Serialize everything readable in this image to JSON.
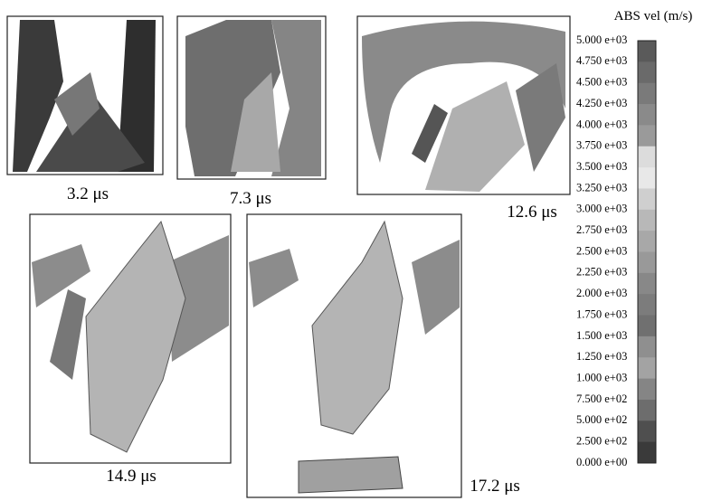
{
  "panels": [
    {
      "caption": "3.2 μs"
    },
    {
      "caption": "7.3 μs"
    },
    {
      "caption": "12.6 μs"
    },
    {
      "caption": "14.9 μs"
    },
    {
      "caption": "17.2 μs"
    }
  ],
  "legend": {
    "title": "ABS vel (m/s)",
    "labels": [
      "5.000 e+03",
      "4.750 e+03",
      "4.500 e+03",
      "4.250 e+03",
      "4.000 e+03",
      "3.750 e+03",
      "3.500 e+03",
      "3.250 e+03",
      "3.000 e+03",
      "2.750 e+03",
      "2.500 e+03",
      "2.250 e+03",
      "2.000 e+03",
      "1.750 e+03",
      "1.500 e+03",
      "1.250 e+03",
      "1.000 e+03",
      "7.500 e+02",
      "5.000 e+02",
      "2.500 e+02",
      "0.000 e+00"
    ]
  }
}
